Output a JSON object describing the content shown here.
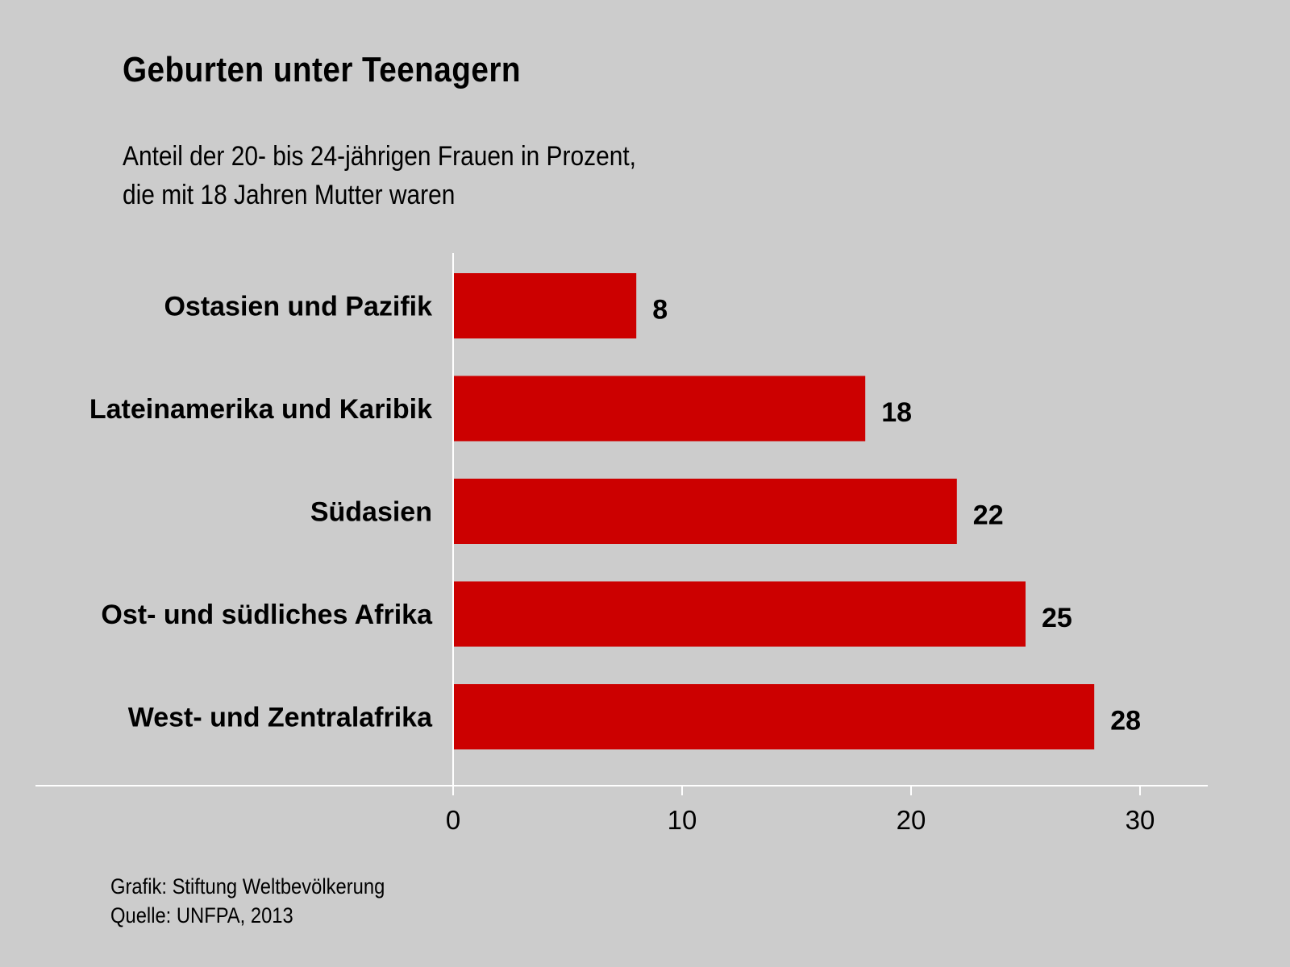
{
  "chart_data": {
    "type": "bar",
    "orientation": "horizontal",
    "title": "Geburten unter Teenagern",
    "subtitle": [
      "Anteil der 20- bis 24-jährigen Frauen in Prozent,",
      "die mit 18 Jahren Mutter waren"
    ],
    "categories": [
      "Ostasien und Pazifik",
      "Lateinamerika und Karibik",
      "Südasien",
      "Ost- und südliches Afrika",
      "West- und Zentralafrika"
    ],
    "values": [
      8,
      18,
      22,
      25,
      28
    ],
    "value_labels": [
      "8",
      "18",
      "22",
      "25",
      "28"
    ],
    "xlim": [
      0,
      30
    ],
    "xticks": [
      "0",
      "10",
      "20",
      "30"
    ],
    "xlabel": "",
    "ylabel": "",
    "grid": false,
    "bar_color": "#cc0000"
  },
  "credits": {
    "grafik": "Grafik: Stiftung Weltbevölkerung",
    "quelle": "Quelle: UNFPA, 2013"
  }
}
